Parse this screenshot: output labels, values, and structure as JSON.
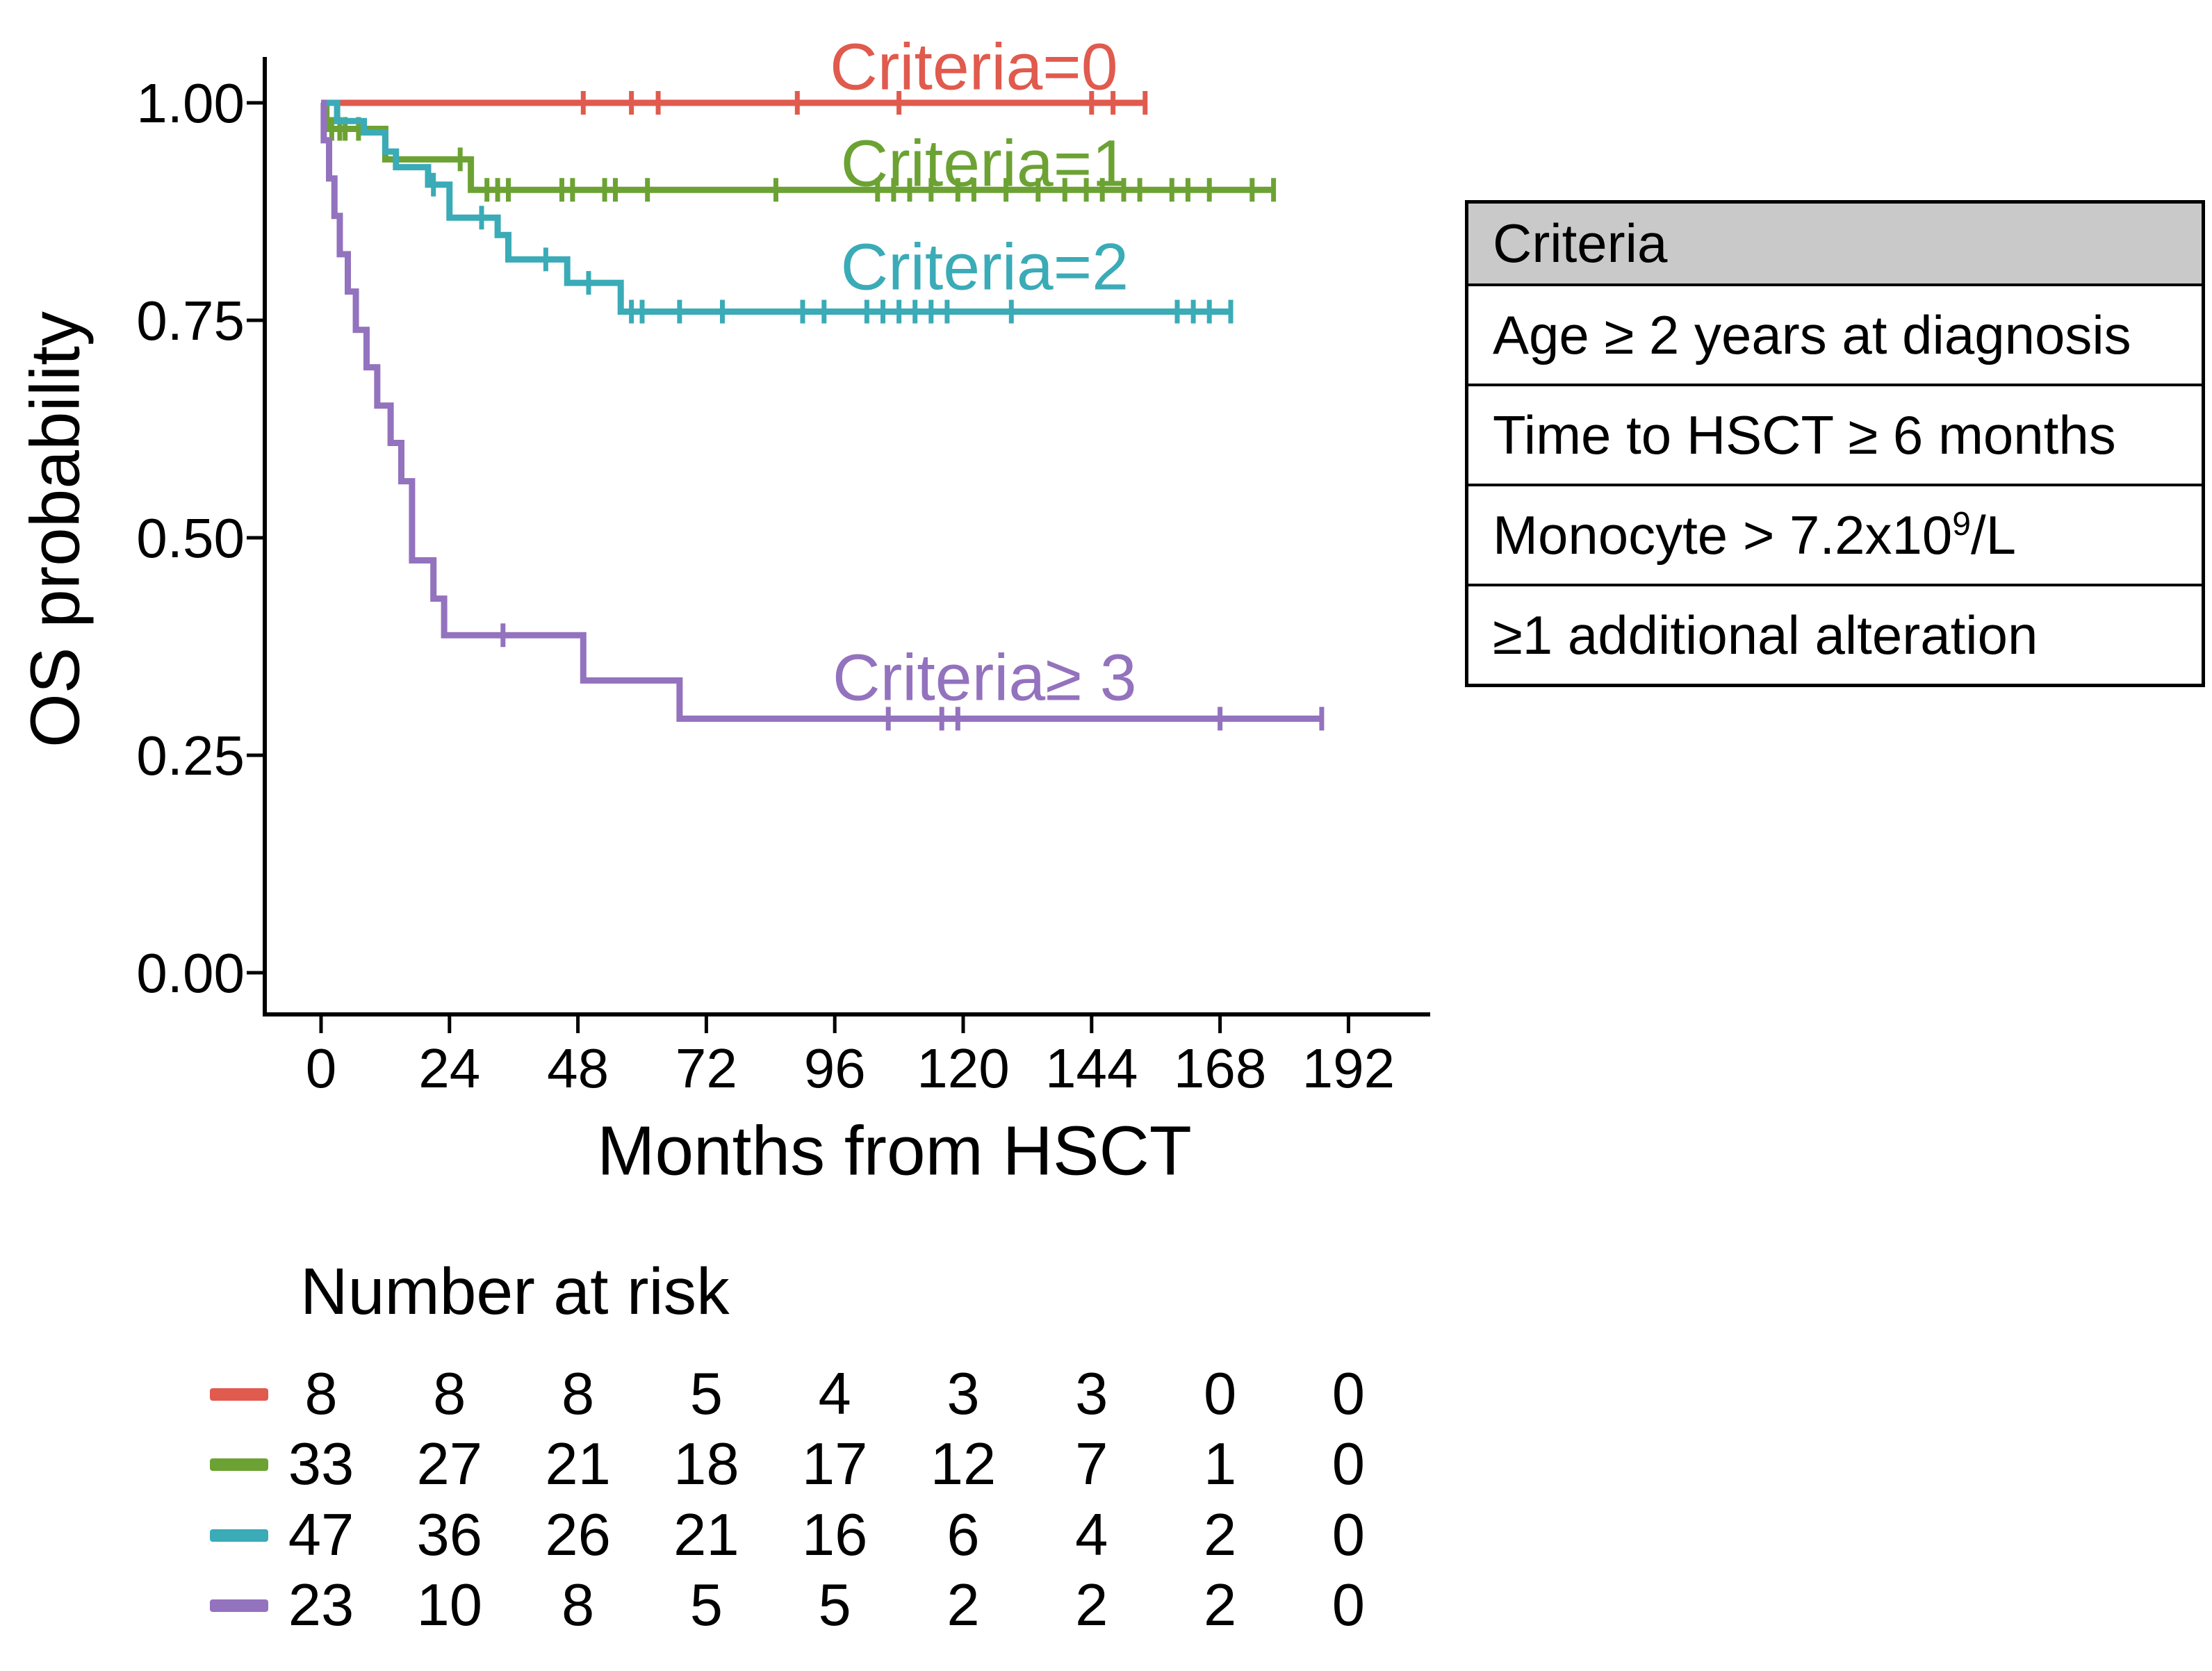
{
  "figure": {
    "background": "#ffffff",
    "text_color": "#000000"
  },
  "chart_data": {
    "type": "line",
    "subtype": "kaplan-meier-step",
    "title": "",
    "xlabel": "Months from HSCT",
    "ylabel": "OS probability",
    "x_ticks": [
      0,
      24,
      48,
      72,
      96,
      120,
      144,
      168,
      192
    ],
    "x_tick_labels": [
      "0",
      "24",
      "48",
      "72",
      "96",
      "120",
      "144",
      "168",
      "192"
    ],
    "y_ticks": [
      1.0,
      0.75,
      0.5,
      0.25,
      0.0
    ],
    "y_tick_labels": [
      "1.00",
      "0.75",
      "0.50",
      "0.25",
      "0.00"
    ],
    "xlim": [
      0,
      192
    ],
    "ylim": [
      0,
      1
    ],
    "grid": false,
    "legend_position": "labels-on-curves",
    "series": [
      {
        "name": "Criteria=0",
        "color": "#E05A4E",
        "label": {
          "text": "Criteria=0",
          "month": 122,
          "prob": 1.041
        },
        "steps": [
          [
            0,
            1.0
          ],
          [
            154,
            1.0
          ]
        ],
        "censors": [
          49,
          58,
          63,
          89,
          108,
          144,
          148,
          154
        ]
      },
      {
        "name": "Criteria=1",
        "color": "#6CA233",
        "label": {
          "text": "Criteria=1",
          "month": 124,
          "prob": 0.93
        },
        "steps": [
          [
            0,
            1.0
          ],
          [
            1,
            0.97
          ],
          [
            12,
            0.935
          ],
          [
            28,
            0.9
          ],
          [
            178,
            0.9
          ]
        ],
        "censors": [
          2,
          3.5,
          4.5,
          7,
          26,
          31,
          33,
          35,
          45,
          47,
          53,
          55,
          61,
          85,
          104,
          107,
          110,
          114,
          119,
          122,
          128,
          134,
          139,
          143,
          146,
          150,
          153,
          159,
          162,
          166,
          174,
          178
        ]
      },
      {
        "name": "Criteria=2",
        "color": "#3AABB7",
        "label": {
          "text": "Criteria=2",
          "month": 124,
          "prob": 0.811
        },
        "steps": [
          [
            0,
            1.0
          ],
          [
            3,
            0.979
          ],
          [
            8,
            0.966
          ],
          [
            12,
            0.944
          ],
          [
            14,
            0.926
          ],
          [
            20,
            0.906
          ],
          [
            24,
            0.868
          ],
          [
            33,
            0.848
          ],
          [
            35,
            0.82
          ],
          [
            46,
            0.793
          ],
          [
            56,
            0.76
          ],
          [
            170,
            0.76
          ]
        ],
        "censors": [
          21,
          30,
          42,
          50,
          58,
          60,
          67,
          75,
          90,
          94,
          102,
          105,
          108,
          111,
          114,
          117,
          129,
          160,
          163,
          166,
          170
        ]
      },
      {
        "name": "Criteria≥ 3",
        "color": "#9372BE",
        "label": {
          "text": "Criteria≥ 3",
          "month": 124,
          "prob": 0.339
        },
        "steps": [
          [
            0,
            1.0
          ],
          [
            0.5,
            0.957
          ],
          [
            1.5,
            0.913
          ],
          [
            2.5,
            0.87
          ],
          [
            3.5,
            0.826
          ],
          [
            5,
            0.783
          ],
          [
            6.5,
            0.739
          ],
          [
            8.5,
            0.696
          ],
          [
            10.5,
            0.652
          ],
          [
            13,
            0.609
          ],
          [
            15,
            0.565
          ],
          [
            17,
            0.474
          ],
          [
            21,
            0.43
          ],
          [
            23,
            0.388
          ],
          [
            49,
            0.336
          ],
          [
            67,
            0.292
          ],
          [
            187,
            0.292
          ]
        ],
        "censors": [
          34,
          106,
          116,
          119,
          168,
          187
        ]
      }
    ],
    "risk_table": {
      "title": "Number at risk",
      "time_points": [
        0,
        24,
        48,
        72,
        96,
        120,
        144,
        168,
        192
      ],
      "rows": [
        {
          "series": "Criteria=0",
          "color": "#E05A4E",
          "counts": [
            8,
            8,
            8,
            5,
            4,
            3,
            3,
            0,
            0
          ]
        },
        {
          "series": "Criteria=1",
          "color": "#6CA233",
          "counts": [
            33,
            27,
            21,
            18,
            17,
            12,
            7,
            1,
            0
          ]
        },
        {
          "series": "Criteria=2",
          "color": "#3AABB7",
          "counts": [
            47,
            36,
            26,
            21,
            16,
            6,
            4,
            2,
            0
          ]
        },
        {
          "series": "Criteria≥ 3",
          "color": "#9372BE",
          "counts": [
            23,
            10,
            8,
            5,
            5,
            2,
            2,
            2,
            0
          ]
        }
      ]
    }
  },
  "criteria_table": {
    "header": "Criteria",
    "header_bg": "#C9C9C9",
    "rows": [
      {
        "pre": "Age ≥ 2 years at diagnosis",
        "sup": "",
        "post": ""
      },
      {
        "pre": "Time to HSCT ≥ 6 months",
        "sup": "",
        "post": ""
      },
      {
        "pre": "Monocyte > 7.2x10",
        "sup": "9",
        "post": "/L"
      },
      {
        "pre": "≥1 additional alteration",
        "sup": "",
        "post": ""
      }
    ]
  }
}
